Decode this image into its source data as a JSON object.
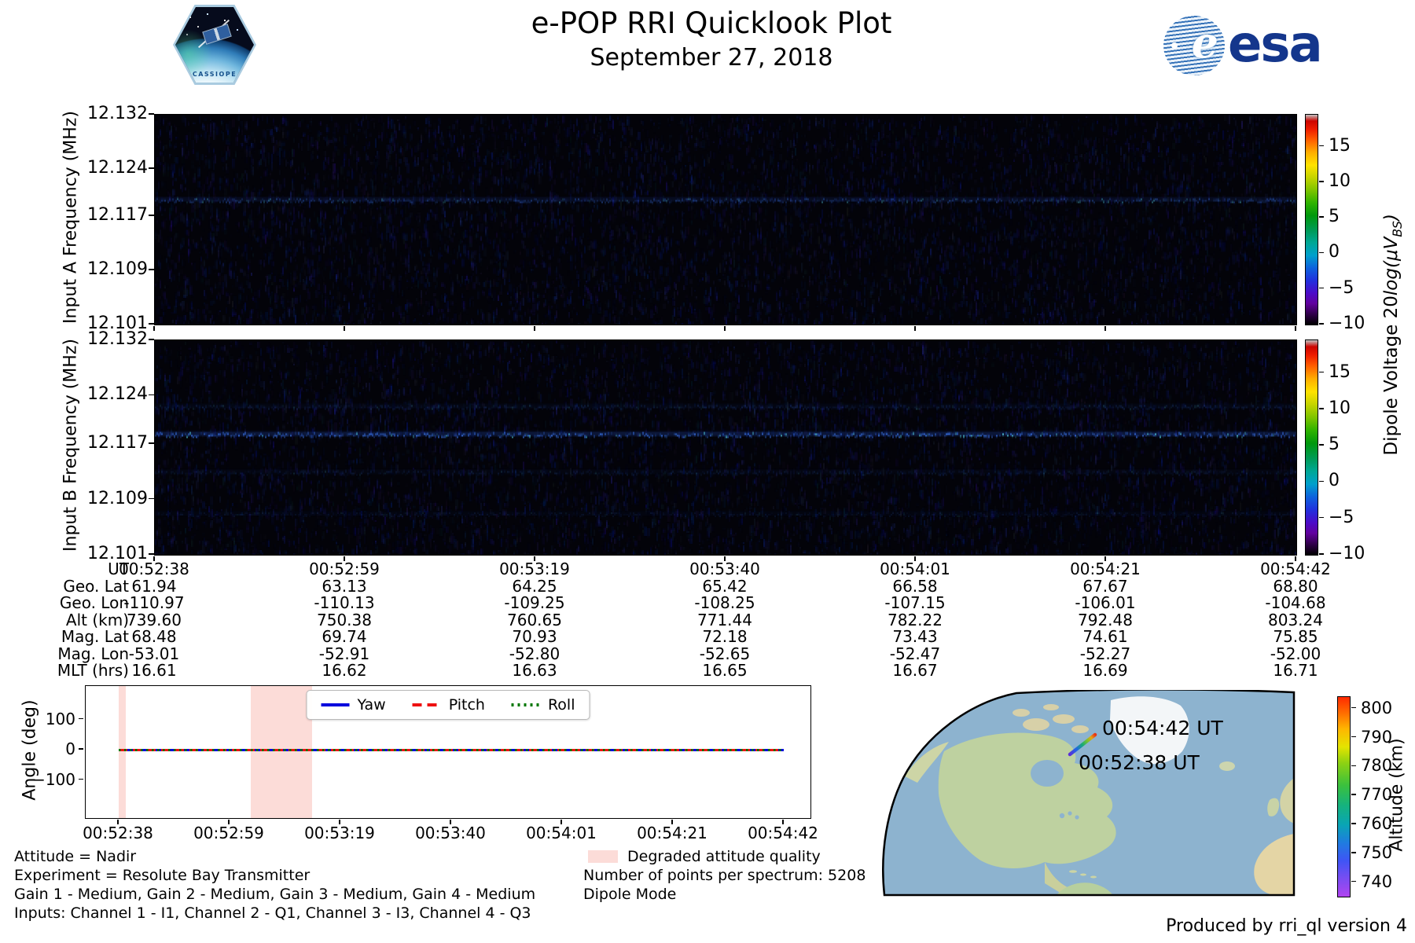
{
  "header": {
    "title": "e-POP RRI Quicklook Plot",
    "date": "September 27, 2018",
    "cassiope_badge": "CASSIOPE",
    "esa_logo_text": "esa"
  },
  "chart_data": [
    {
      "id": "input_a_spectrogram",
      "type": "heatmap",
      "ylabel": "Input A Frequency (MHz)",
      "ylim_mhz": [
        12.101,
        12.132
      ],
      "yticks_mhz": [
        "12.132",
        "12.124",
        "12.117",
        "12.109",
        "12.101"
      ],
      "x_ut": [
        "00:52:38",
        "00:52:59",
        "00:53:19",
        "00:53:40",
        "00:54:01",
        "00:54:21",
        "00:54:42"
      ],
      "background_level_db": -10,
      "emission_lines": [
        {
          "freq_mhz": 12.1195,
          "strength": 0.4
        }
      ],
      "colorbar": {
        "ticks": [
          15,
          10,
          5,
          0,
          -5,
          -10
        ],
        "vmin": -10,
        "vmax": 19.5
      }
    },
    {
      "id": "input_b_spectrogram",
      "type": "heatmap",
      "ylabel": "Input B Frequency (MHz)",
      "ylim_mhz": [
        12.101,
        12.132
      ],
      "yticks_mhz": [
        "12.132",
        "12.124",
        "12.117",
        "12.109",
        "12.101"
      ],
      "x_ut": [
        "00:52:38",
        "00:52:59",
        "00:53:19",
        "00:53:40",
        "00:54:01",
        "00:54:21",
        "00:54:42"
      ],
      "background_level_db": -10,
      "emission_lines": [
        {
          "freq_mhz": 12.1225,
          "strength": 0.2
        },
        {
          "freq_mhz": 12.1185,
          "strength": 0.8
        },
        {
          "freq_mhz": 12.113,
          "strength": 0.16
        },
        {
          "freq_mhz": 12.107,
          "strength": 0.12
        }
      ],
      "colorbar": {
        "ticks": [
          15,
          10,
          5,
          0,
          -5,
          -10
        ],
        "vmin": -10,
        "vmax": 19.5
      }
    },
    {
      "id": "attitude_angles",
      "type": "line",
      "ylabel": "Angle (deg)",
      "yticks": [
        100,
        0,
        -100
      ],
      "x_ut": [
        "00:52:38",
        "00:52:59",
        "00:53:19",
        "00:53:40",
        "00:54:01",
        "00:54:21",
        "00:54:42"
      ],
      "series": [
        {
          "name": "Yaw",
          "color": "#0000dd",
          "style": "solid",
          "values": [
            0,
            0,
            0,
            0,
            0,
            0,
            0
          ]
        },
        {
          "name": "Pitch",
          "color": "#ee1111",
          "style": "dashed",
          "values": [
            0,
            0,
            0,
            0,
            0,
            0,
            0
          ]
        },
        {
          "name": "Roll",
          "color": "#007700",
          "style": "dotted",
          "values": [
            0,
            0,
            0,
            0,
            0,
            0,
            0
          ]
        }
      ],
      "degraded_regions_frac": [
        [
          0.0455,
          0.0555
        ],
        [
          0.2278,
          0.3124
        ]
      ]
    },
    {
      "id": "ground_track_map",
      "type": "map",
      "track_labels": [
        "00:54:42 UT",
        "00:52:38 UT"
      ],
      "track": {
        "start_ut": "00:52:38",
        "end_ut": "00:54:42"
      },
      "colorbar": {
        "label": "Altitude (km)",
        "ticks": [
          800,
          790,
          780,
          770,
          760,
          750,
          740
        ],
        "vmin": 735,
        "vmax": 804
      }
    }
  ],
  "colorbar_label": {
    "prefix": "Dipole Voltage 20",
    "log": "log",
    "unit_open": "(μV",
    "unit_sub": "BS",
    "unit_close": ")"
  },
  "ephemeris": {
    "rows": [
      {
        "label": "UT",
        "values": [
          "00:52:38",
          "00:52:59",
          "00:53:19",
          "00:53:40",
          "00:54:01",
          "00:54:21",
          "00:54:42"
        ]
      },
      {
        "label": "Geo. Lat",
        "values": [
          "61.94",
          "63.13",
          "64.25",
          "65.42",
          "66.58",
          "67.67",
          "68.80"
        ]
      },
      {
        "label": "Geo. Lon",
        "values": [
          "-110.97",
          "-110.13",
          "-109.25",
          "-108.25",
          "-107.15",
          "-106.01",
          "-104.68"
        ]
      },
      {
        "label": "Alt (km)",
        "values": [
          "739.60",
          "750.38",
          "760.65",
          "771.44",
          "782.22",
          "792.48",
          "803.24"
        ]
      },
      {
        "label": "Mag. Lat",
        "values": [
          "68.48",
          "69.74",
          "70.93",
          "72.18",
          "73.43",
          "74.61",
          "75.85"
        ]
      },
      {
        "label": "Mag. Lon",
        "values": [
          "-53.01",
          "-52.91",
          "-52.80",
          "-52.65",
          "-52.47",
          "-52.27",
          "-52.00"
        ]
      },
      {
        "label": "MLT (hrs)",
        "values": [
          "16.61",
          "16.62",
          "16.63",
          "16.65",
          "16.67",
          "16.69",
          "16.71"
        ]
      }
    ]
  },
  "footer": {
    "left_lines": [
      "Attitude = Nadir",
      "Experiment = Resolute Bay Transmitter",
      "Gain 1 - Medium, Gain 2 - Medium, Gain 3 - Medium, Gain 4 - Medium",
      "Inputs: Channel 1 - I1, Channel 2 - Q1, Channel 3 - I3, Channel 4 - Q3"
    ],
    "degraded_legend": "Degraded attitude quality",
    "points_per_spectrum": "Number of points per spectrum: 5208",
    "mode": "Dipole Mode",
    "credit": "Produced by rri_ql version 4"
  },
  "colors": {
    "degraded_fill": "#fcdcd8",
    "yaw": "#0000dd",
    "pitch": "#ee1111",
    "roll": "#007700",
    "esa_blue": "#14368c",
    "ocean": "#8db3cf"
  }
}
